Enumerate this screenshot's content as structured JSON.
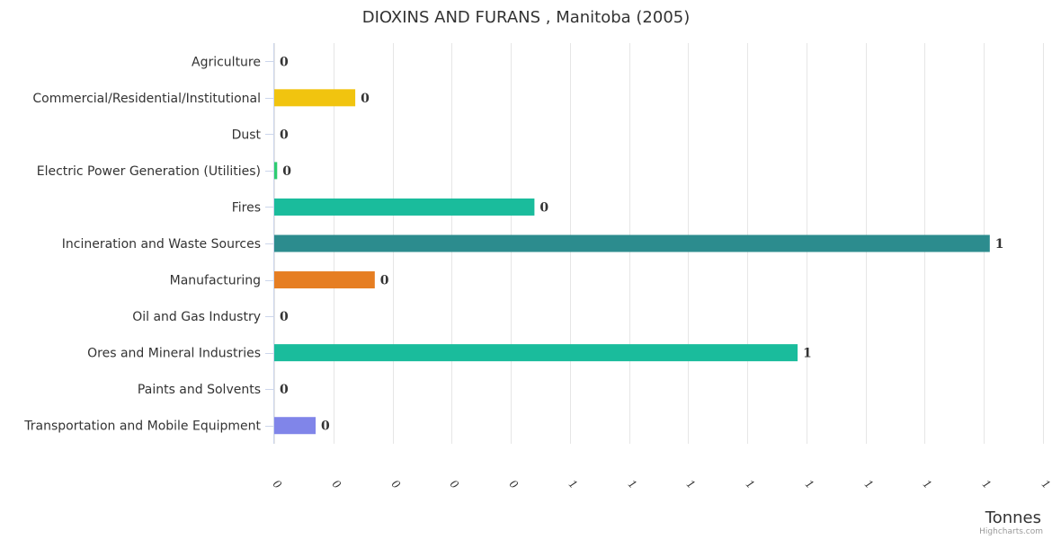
{
  "chart_data": {
    "type": "bar",
    "orientation": "horizontal",
    "title": "DIOXINS AND FURANS , Manitoba (2005)",
    "xlabel": "Tonnes",
    "ylabel": "",
    "categories": [
      "Agriculture",
      "Commercial/Residential/Institutional",
      "Dust",
      "Electric Power Generation (Utilities)",
      "Fires",
      "Incineration and Waste Sources",
      "Manufacturing",
      "Oil and Gas Industry",
      "Ores and Mineral Industries",
      "Paints and Solvents",
      "Transportation and Mobile Equipment"
    ],
    "values": [
      0,
      0.137,
      0,
      0.005,
      0.44,
      1.21,
      0.17,
      0,
      0.885,
      0,
      0.07
    ],
    "data_labels": [
      "0",
      "0",
      "0",
      "0",
      "0",
      "1",
      "0",
      "0",
      "1",
      "0",
      "0"
    ],
    "colors": [
      "#f1c40f",
      "#f1c40f",
      "#1abc9c",
      "#2ecc71",
      "#1abc9c",
      "#2c8c8e",
      "#e67e22",
      "#1abc9c",
      "#1abc9c",
      "#8e44ad",
      "#8085e9"
    ],
    "xlim": [
      0,
      1.3
    ],
    "tick_values": [
      0,
      0.1,
      0.2,
      0.3,
      0.4,
      0.5,
      0.6,
      0.7,
      0.8,
      0.9,
      1.0,
      1.1,
      1.2,
      1.3
    ],
    "tick_labels": [
      "0",
      "0",
      "0",
      "0",
      "0",
      "1",
      "1",
      "1",
      "1",
      "1",
      "1",
      "1",
      "1",
      "1"
    ],
    "grid": true
  },
  "credits": "Highcharts.com"
}
